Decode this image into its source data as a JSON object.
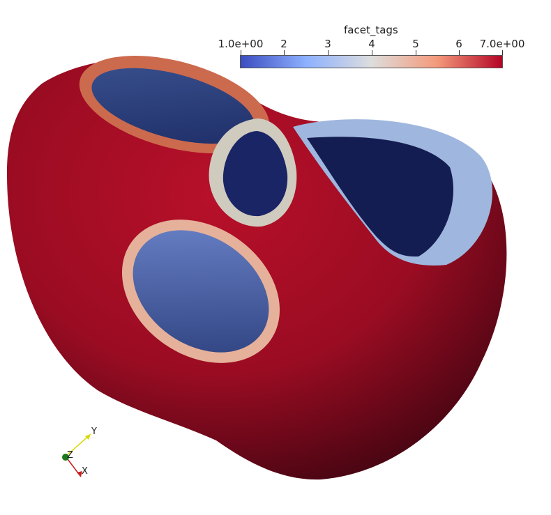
{
  "colorbar": {
    "title": "facet_tags",
    "ticks": [
      "1.0e+00",
      "2",
      "3",
      "4",
      "5",
      "6",
      "7.0e+00"
    ],
    "range": [
      1,
      7
    ],
    "colors": [
      "#3b4cc0",
      "#8db0fe",
      "#dddddd",
      "#f49a7b",
      "#b40426"
    ]
  },
  "axes": {
    "x_label": "X",
    "y_label": "Y",
    "z_label": "Z"
  },
  "scene": {
    "surface_color": "#a50f28",
    "inner_color": "#1e2f6a"
  }
}
